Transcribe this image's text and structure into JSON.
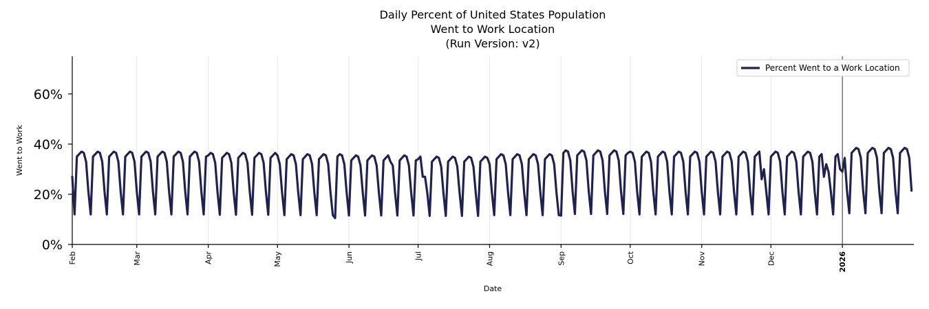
{
  "chart_data": {
    "type": "line",
    "title": [
      "Daily Percent of United States Population",
      "Went to Work Location",
      "(Run Version: v2)"
    ],
    "xlabel": "Date",
    "ylabel": "Went to Work",
    "ylim": [
      0,
      75
    ],
    "yticks": [
      0,
      20,
      40,
      60
    ],
    "ytick_labels": [
      "0%",
      "20%",
      "40%",
      "60%"
    ],
    "x_start": "2025-02-01",
    "x_end": "2026-02-01",
    "month_ticks": [
      {
        "label": "Feb",
        "date": "2025-02-01",
        "bold": false
      },
      {
        "label": "Mar",
        "date": "2025-03-01",
        "bold": false
      },
      {
        "label": "Apr",
        "date": "2025-04-01",
        "bold": false
      },
      {
        "label": "May",
        "date": "2025-05-01",
        "bold": false
      },
      {
        "label": "Jun",
        "date": "2025-06-01",
        "bold": false
      },
      {
        "label": "Jul",
        "date": "2025-07-01",
        "bold": false
      },
      {
        "label": "Aug",
        "date": "2025-08-01",
        "bold": false
      },
      {
        "label": "Sep",
        "date": "2025-09-01",
        "bold": false
      },
      {
        "label": "Oct",
        "date": "2025-10-01",
        "bold": false
      },
      {
        "label": "Nov",
        "date": "2025-11-01",
        "bold": false
      },
      {
        "label": "Dec",
        "date": "2025-12-01",
        "bold": false
      },
      {
        "label": "2026",
        "date": "2026-01-01",
        "bold": true
      }
    ],
    "marker_line_date": "2026-01-01",
    "grid": "vertical",
    "legend_position": "top-right",
    "series": [
      {
        "name": "Percent Went to a Work Location",
        "color": "#1f2251",
        "weekday_pattern": [
          35,
          36,
          37,
          36.5,
          33
        ],
        "weekend_pattern": [
          21,
          12
        ],
        "holidays": [
          {
            "date": "2025-05-26",
            "value": 10.5
          },
          {
            "date": "2025-06-19",
            "value": 33
          },
          {
            "date": "2025-07-03",
            "value": 27
          },
          {
            "date": "2025-07-04",
            "value": 27
          },
          {
            "date": "2025-09-01",
            "value": 11.5
          },
          {
            "date": "2025-11-27",
            "value": 26
          },
          {
            "date": "2025-11-28",
            "value": 30
          },
          {
            "date": "2025-12-24",
            "value": 27
          },
          {
            "date": "2025-12-25",
            "value": 32
          },
          {
            "date": "2025-12-26",
            "value": 29
          },
          {
            "date": "2025-12-31",
            "value": 30
          },
          {
            "date": "2026-01-01",
            "value": 29
          }
        ],
        "monthly_level": [
          {
            "month": "2025-02",
            "level": 36
          },
          {
            "month": "2025-03",
            "level": 36
          },
          {
            "month": "2025-04",
            "level": 35.5
          },
          {
            "month": "2025-05",
            "level": 35
          },
          {
            "month": "2025-06",
            "level": 34.5
          },
          {
            "month": "2025-07",
            "level": 34
          },
          {
            "month": "2025-08",
            "level": 35
          },
          {
            "month": "2025-09",
            "level": 36.5
          },
          {
            "month": "2025-10",
            "level": 36
          },
          {
            "month": "2025-11",
            "level": 36
          },
          {
            "month": "2025-12",
            "level": 36
          },
          {
            "month": "2026-01",
            "level": 37.5
          }
        ]
      }
    ]
  }
}
